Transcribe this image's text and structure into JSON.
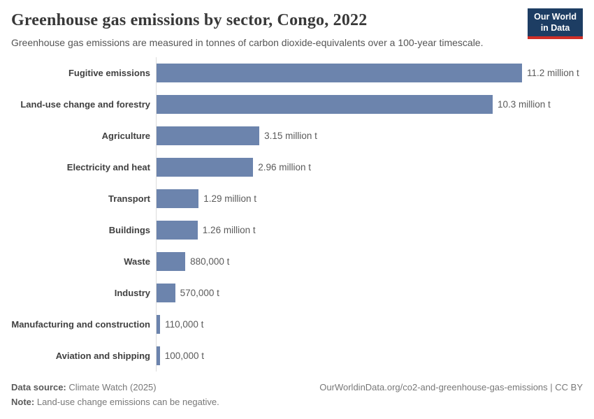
{
  "header": {
    "title": "Greenhouse gas emissions by sector, Congo, 2022",
    "subtitle": "Greenhouse gas emissions are measured in tonnes of carbon dioxide-equivalents over a 100-year timescale.",
    "logo": {
      "line1": "Our World",
      "line2": "in Data"
    }
  },
  "chart_data": {
    "type": "bar",
    "orientation": "horizontal",
    "title": "Greenhouse gas emissions by sector, Congo, 2022",
    "categories": [
      "Fugitive emissions",
      "Land-use change and forestry",
      "Agriculture",
      "Electricity and heat",
      "Transport",
      "Buildings",
      "Waste",
      "Industry",
      "Manufacturing and construction",
      "Aviation and shipping"
    ],
    "values": [
      11.2,
      10.3,
      3.15,
      2.96,
      1.29,
      1.26,
      0.88,
      0.57,
      0.11,
      0.1
    ],
    "value_labels": [
      "11.2 million t",
      "10.3 million t",
      "3.15 million t",
      "2.96 million t",
      "1.29 million t",
      "1.26 million t",
      "880,000 t",
      "570,000 t",
      "110,000 t",
      "100,000 t"
    ],
    "xlabel": "",
    "ylabel": "",
    "xmax": 11.2,
    "grid": false,
    "legend": false
  },
  "footer": {
    "data_source_label": "Data source:",
    "data_source_value": "Climate Watch (2025)",
    "note_label": "Note:",
    "note_value": "Land-use change emissions can be negative.",
    "link": "OurWorldinData.org/co2-and-greenhouse-gas-emissions | CC BY"
  },
  "colors": {
    "bar": "#6c84ad",
    "logo_navy": "#1d3d63",
    "logo_red": "#cf2f28",
    "axis_line": "#dcdcdc"
  }
}
